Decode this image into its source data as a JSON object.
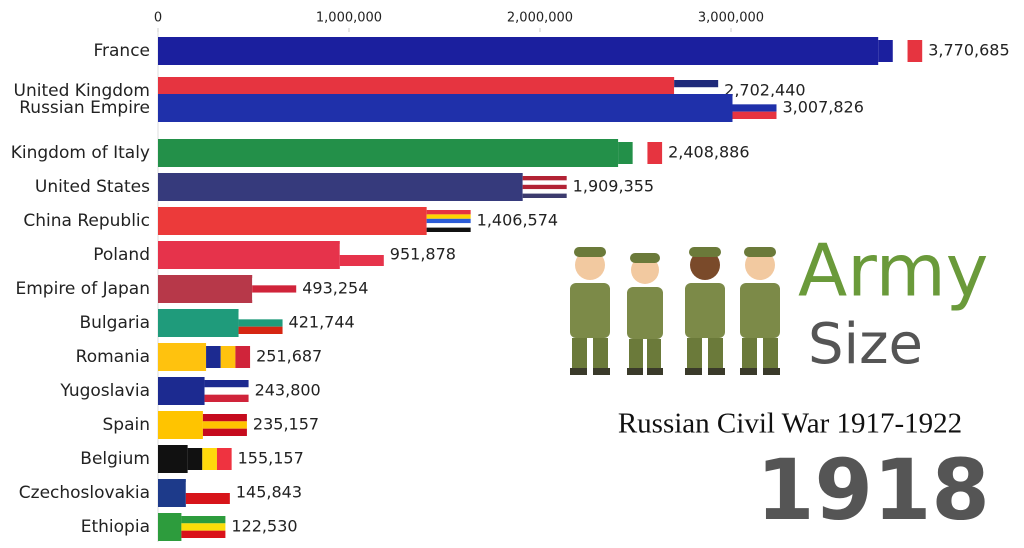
{
  "chart_data": {
    "type": "bar",
    "orientation": "horizontal",
    "title": "Army",
    "subtitle": "Size",
    "caption": "Russian Civil War 1917-1922",
    "period": "1918",
    "categories": [
      "France",
      "United Kingdom",
      "Russian Empire",
      "Kingdom of Italy",
      "United States",
      "China Republic",
      "Poland",
      "Empire of Japan",
      "Bulgaria",
      "Romania",
      "Yugoslavia",
      "Spain",
      "Belgium",
      "Czechoslovakia",
      "Ethiopia"
    ],
    "values": [
      3770685,
      2702440,
      3007826,
      2408886,
      1909355,
      1406574,
      951878,
      493254,
      421744,
      251687,
      243800,
      235157,
      155157,
      145843,
      122530
    ],
    "value_labels": [
      "3,770,685",
      "2,702,440",
      "3,007,826",
      "2,408,886",
      "1,909,355",
      "1,406,574",
      "951,878",
      "493,254",
      "421,744",
      "251,687",
      "243,800",
      "235,157",
      "155,157",
      "145,843",
      "122,530"
    ],
    "colors": [
      "#1b1f9e",
      "#e63440",
      "#1f30aa",
      "#239049",
      "#363a7c",
      "#ec3a3a",
      "#e6334b",
      "#b73849",
      "#1f9b7b",
      "#ffc20e",
      "#1c2a90",
      "#ffc400",
      "#111111",
      "#1d3a8a",
      "#2d9c3d"
    ],
    "xlim": [
      0,
      4000000
    ],
    "xticks": [
      0,
      {
        "value": 1000000,
        "label": "1,000,000"
      },
      {
        "value": 2000000,
        "label": "2,000,000"
      },
      {
        "value": 3000000,
        "label": "3,000,000"
      }
    ]
  }
}
